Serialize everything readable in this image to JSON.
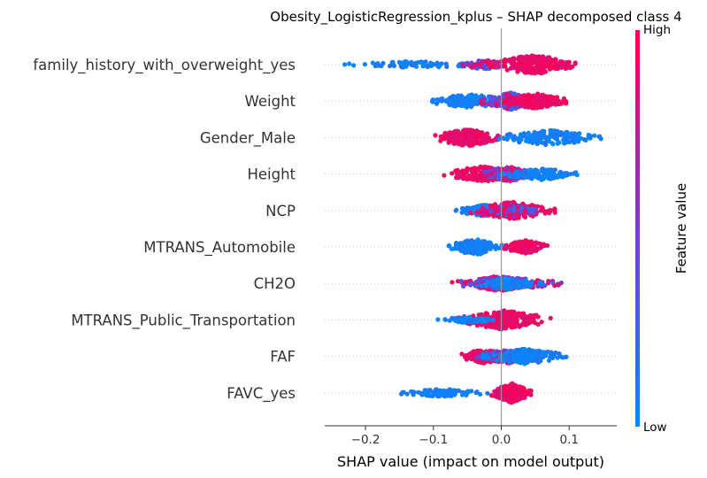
{
  "chart_data": {
    "type": "scatter",
    "subtype": "shap-beeswarm",
    "title": "Obesity_LogisticRegression_kplus – SHAP decomposed class 4",
    "xlabel": "SHAP value (impact on model output)",
    "xlim": [
      -0.26,
      0.17
    ],
    "xticks": [
      -0.2,
      -0.1,
      0.0,
      0.1
    ],
    "xtick_labels": [
      "−0.2",
      "−0.1",
      "0.0",
      "0.1"
    ],
    "grid": false,
    "colorbar": {
      "label": "Feature value",
      "high_label": "High",
      "low_label": "Low",
      "colors": [
        "#008bfb",
        "#7d39d7",
        "#ff0051"
      ]
    },
    "features": [
      {
        "name": "family_history_with_overweight_yes",
        "shap_range": [
          -0.24,
          0.115
        ],
        "groups": [
          {
            "min": -0.24,
            "max": -0.02,
            "value": "low",
            "density": 0.35
          },
          {
            "min": -0.06,
            "max": 0.01,
            "value": "mixed",
            "density": 0.5
          },
          {
            "min": -0.02,
            "max": 0.115,
            "value": "high",
            "density": 1.0
          }
        ]
      },
      {
        "name": "Weight",
        "shap_range": [
          -0.115,
          0.1
        ],
        "groups": [
          {
            "min": -0.115,
            "max": 0.02,
            "value": "low",
            "density": 0.7
          },
          {
            "min": -0.03,
            "max": 0.06,
            "value": "mixed",
            "density": 0.9
          },
          {
            "min": 0.0,
            "max": 0.1,
            "value": "high",
            "density": 0.8
          }
        ]
      },
      {
        "name": "Gender_Male",
        "shap_range": [
          -0.1,
          0.15
        ],
        "groups": [
          {
            "min": -0.1,
            "max": 0.0,
            "value": "high",
            "density": 0.9
          },
          {
            "min": -0.01,
            "max": 0.15,
            "value": "low",
            "density": 0.8
          }
        ]
      },
      {
        "name": "Height",
        "shap_range": [
          -0.085,
          0.12
        ],
        "groups": [
          {
            "min": -0.085,
            "max": 0.03,
            "value": "high",
            "density": 0.8
          },
          {
            "min": -0.03,
            "max": 0.05,
            "value": "mixed",
            "density": 0.8
          },
          {
            "min": 0.0,
            "max": 0.12,
            "value": "low",
            "density": 0.6
          }
        ]
      },
      {
        "name": "NCP",
        "shap_range": [
          -0.07,
          0.08
        ],
        "groups": [
          {
            "min": -0.07,
            "max": 0.02,
            "value": "low",
            "density": 0.6
          },
          {
            "min": -0.05,
            "max": 0.08,
            "value": "high",
            "density": 0.9
          },
          {
            "min": -0.03,
            "max": 0.06,
            "value": "mixed",
            "density": 0.6
          }
        ]
      },
      {
        "name": "MTRANS_Automobile",
        "shap_range": [
          -0.085,
          0.07
        ],
        "groups": [
          {
            "min": -0.085,
            "max": 0.01,
            "value": "low",
            "density": 0.8
          },
          {
            "min": 0.0,
            "max": 0.07,
            "value": "high",
            "density": 0.7
          }
        ]
      },
      {
        "name": "CH2O",
        "shap_range": [
          -0.085,
          0.09
        ],
        "groups": [
          {
            "min": -0.06,
            "max": 0.05,
            "value": "high",
            "density": 0.8
          },
          {
            "min": -0.085,
            "max": 0.09,
            "value": "mixed",
            "density": 0.7
          },
          {
            "min": -0.04,
            "max": 0.06,
            "value": "low",
            "density": 0.6
          }
        ]
      },
      {
        "name": "MTRANS_Public_Transportation",
        "shap_range": [
          -0.095,
          0.075
        ],
        "groups": [
          {
            "min": -0.07,
            "max": 0.075,
            "value": "high",
            "density": 1.0
          },
          {
            "min": -0.095,
            "max": 0.0,
            "value": "low",
            "density": 0.3
          }
        ]
      },
      {
        "name": "FAF",
        "shap_range": [
          -0.07,
          0.1
        ],
        "groups": [
          {
            "min": -0.07,
            "max": 0.02,
            "value": "high",
            "density": 0.7
          },
          {
            "min": -0.04,
            "max": 0.06,
            "value": "mixed",
            "density": 0.7
          },
          {
            "min": -0.03,
            "max": 0.1,
            "value": "low",
            "density": 0.8
          }
        ]
      },
      {
        "name": "FAVC_yes",
        "shap_range": [
          -0.155,
          0.045
        ],
        "groups": [
          {
            "min": -0.155,
            "max": -0.02,
            "value": "low",
            "density": 0.4
          },
          {
            "min": -0.015,
            "max": 0.045,
            "value": "high",
            "density": 1.0
          }
        ]
      }
    ]
  }
}
